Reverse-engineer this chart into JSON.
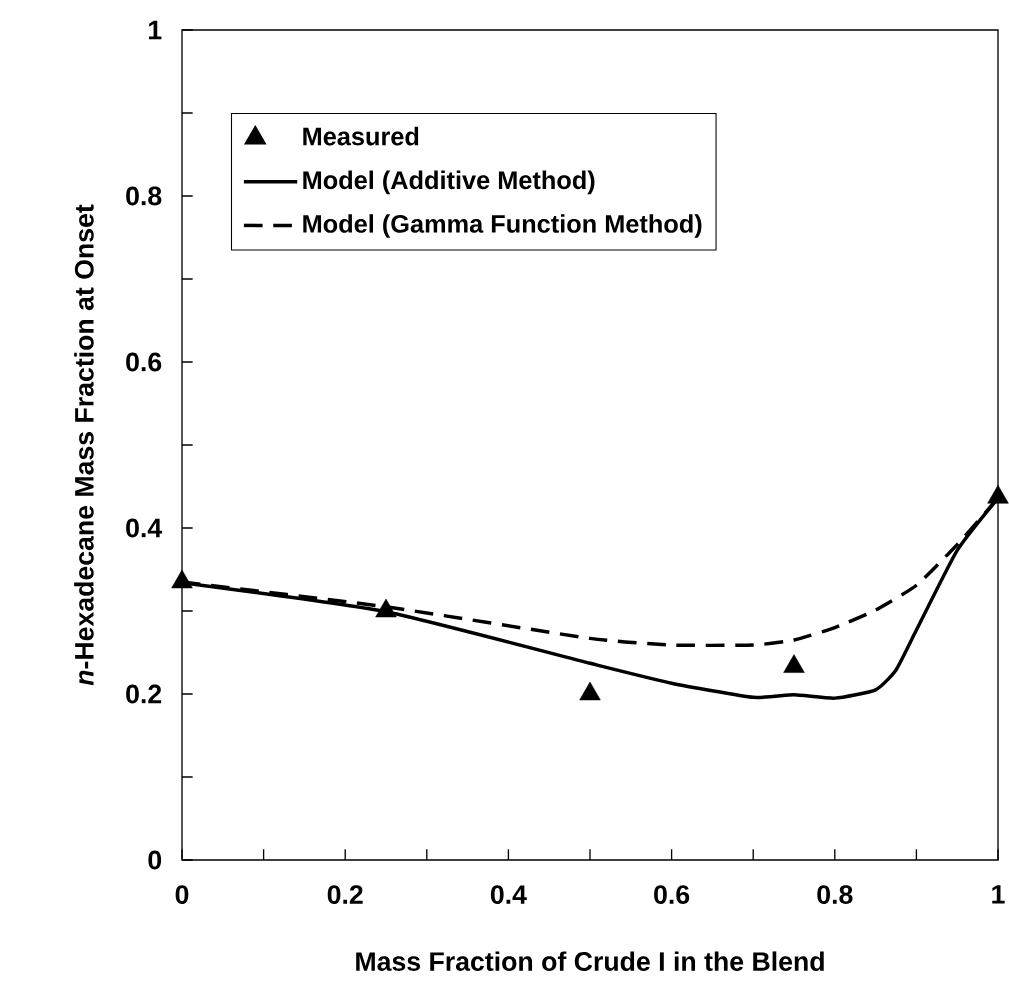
{
  "chart_data": {
    "type": "line",
    "xlabel": "Mass Fraction of Crude I in the Blend",
    "ylabel": "*n*-Hexadecane Mass Fraction at Onset",
    "xlim": [
      0,
      1
    ],
    "ylim": [
      0,
      1
    ],
    "xticks": [
      0,
      {
        "value": 0.1,
        "label": null
      },
      0.2,
      {
        "value": 0.3,
        "label": null
      },
      0.4,
      {
        "value": 0.5,
        "label": null
      },
      0.6,
      {
        "value": 0.7,
        "label": null
      },
      0.8,
      {
        "value": 0.9,
        "label": null
      },
      1
    ],
    "yticks": [
      0,
      {
        "value": 0.1,
        "label": null
      },
      0.2,
      {
        "value": 0.3,
        "label": null
      },
      0.4,
      {
        "value": 0.5,
        "label": null
      },
      0.6,
      {
        "value": 0.7,
        "label": null
      },
      0.8,
      {
        "value": 0.9,
        "label": null
      },
      1
    ],
    "legend": "top left",
    "grid": false,
    "series": [
      {
        "name": "Measured",
        "type": "scatter",
        "marker": "triangle",
        "color": "#000000",
        "x": [
          0,
          0.25,
          0.5,
          0.75,
          1
        ],
        "values": [
          0.335,
          0.3,
          0.2,
          0.233,
          0.437
        ]
      },
      {
        "name": "Model (Additive Method)",
        "line_style": "solid",
        "color": "#000000",
        "x": [
          0,
          0.25,
          0.5,
          0.6,
          0.7,
          0.75,
          0.8,
          0.85,
          0.875,
          0.9,
          0.95,
          1
        ],
        "values": [
          0.334,
          0.299,
          0.237,
          0.213,
          0.196,
          0.199,
          0.195,
          0.205,
          0.229,
          0.277,
          0.373,
          0.436
        ]
      },
      {
        "name": "Model (Gamma Function Method)",
        "line_style": "dashed",
        "color": "#000000",
        "x": [
          0,
          0.25,
          0.5,
          0.6,
          0.7,
          0.75,
          0.8,
          0.85,
          0.9,
          0.95,
          1
        ],
        "values": [
          0.335,
          0.305,
          0.267,
          0.259,
          0.259,
          0.265,
          0.28,
          0.301,
          0.331,
          0.38,
          0.436
        ]
      }
    ]
  }
}
